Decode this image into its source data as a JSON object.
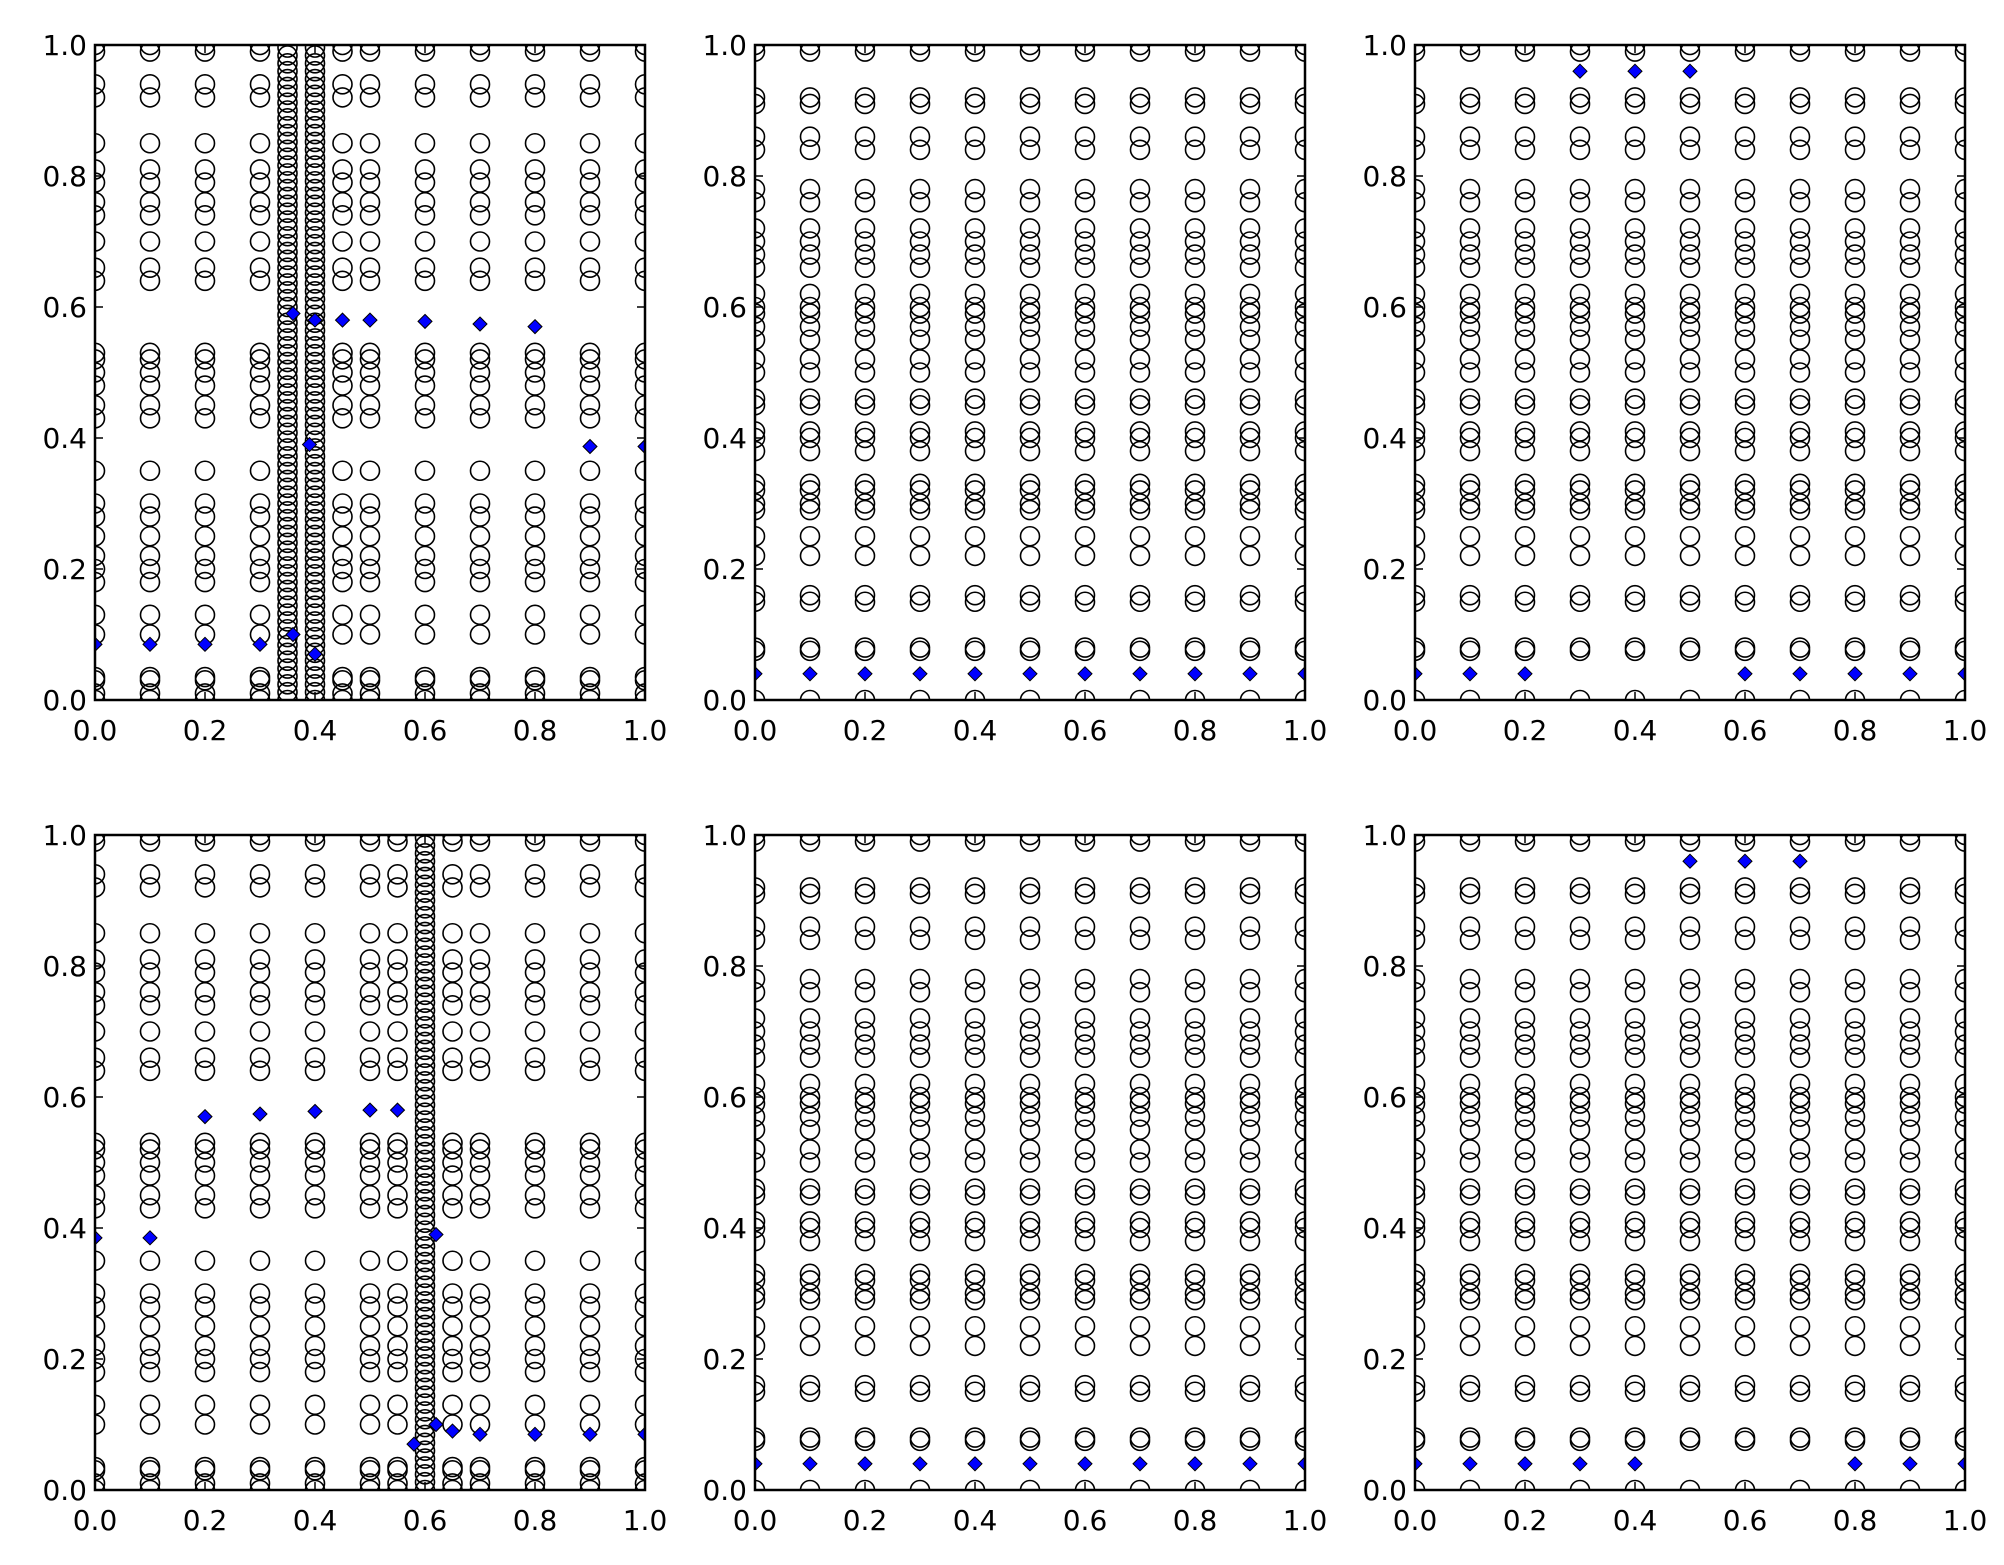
{
  "colors": {
    "marker_face": "#0000ff",
    "marker_edge": "#000000",
    "circle_edge": "#000000",
    "axes": "#000000",
    "background": "#ffffff"
  },
  "chart_data": [
    {
      "type": "scatter",
      "panel": "top-left",
      "xlim": [
        0,
        1
      ],
      "ylim": [
        0,
        1
      ],
      "xticks": [
        "0.0",
        "0.2",
        "0.4",
        "0.6",
        "0.8",
        "1.0"
      ],
      "yticks": [
        "0.0",
        "0.2",
        "0.4",
        "0.6",
        "0.8",
        "1.0"
      ],
      "grid": false,
      "circle_x": [
        0,
        0.1,
        0.2,
        0.3,
        0.35,
        0.4,
        0.45,
        0.5,
        0.6,
        0.7,
        0.8,
        0.9,
        1.0
      ],
      "circle_dense_columns": [
        0.35,
        0.4
      ],
      "circle_y": [
        0,
        0.01,
        0.03,
        0.035,
        0.1,
        0.13,
        0.18,
        0.2,
        0.22,
        0.25,
        0.28,
        0.3,
        0.35,
        0.43,
        0.45,
        0.48,
        0.5,
        0.52,
        0.53,
        0.64,
        0.66,
        0.7,
        0.74,
        0.76,
        0.79,
        0.81,
        0.85,
        0.92,
        0.94,
        0.99,
        1.0
      ],
      "diamonds": [
        [
          0,
          0.085
        ],
        [
          0.1,
          0.085
        ],
        [
          0.2,
          0.085
        ],
        [
          0.3,
          0.085
        ],
        [
          0.36,
          0.1
        ],
        [
          0.4,
          0.07
        ],
        [
          0.36,
          0.59
        ],
        [
          0.4,
          0.58
        ],
        [
          0.45,
          0.58
        ],
        [
          0.5,
          0.58
        ],
        [
          0.6,
          0.578
        ],
        [
          0.7,
          0.574
        ],
        [
          0.8,
          0.57
        ],
        [
          0.9,
          0.387
        ],
        [
          1.0,
          0.387
        ],
        [
          0.39,
          0.39
        ]
      ]
    },
    {
      "type": "scatter",
      "panel": "top-middle",
      "xlim": [
        0,
        1
      ],
      "ylim": [
        0,
        1
      ],
      "xticks": [
        "0.0",
        "0.2",
        "0.4",
        "0.6",
        "0.8",
        "1.0"
      ],
      "yticks": [
        "0.0",
        "0.2",
        "0.4",
        "0.6",
        "0.8",
        "1.0"
      ],
      "grid": false,
      "circle_x": [
        0,
        0.1,
        0.2,
        0.3,
        0.4,
        0.5,
        0.6,
        0.7,
        0.8,
        0.9,
        1.0
      ],
      "circle_dense_columns": [],
      "circle_y": [
        0,
        0.075,
        0.08,
        0.15,
        0.16,
        0.22,
        0.25,
        0.29,
        0.3,
        0.32,
        0.33,
        0.38,
        0.4,
        0.41,
        0.45,
        0.46,
        0.5,
        0.52,
        0.55,
        0.57,
        0.59,
        0.6,
        0.62,
        0.66,
        0.68,
        0.7,
        0.72,
        0.76,
        0.78,
        0.84,
        0.86,
        0.91,
        0.92,
        0.99,
        1.0
      ],
      "diamonds": [
        [
          0,
          0.04
        ],
        [
          0.1,
          0.04
        ],
        [
          0.2,
          0.04
        ],
        [
          0.3,
          0.04
        ],
        [
          0.4,
          0.04
        ],
        [
          0.5,
          0.04
        ],
        [
          0.6,
          0.04
        ],
        [
          0.7,
          0.04
        ],
        [
          0.8,
          0.04
        ],
        [
          0.9,
          0.04
        ],
        [
          1.0,
          0.04
        ]
      ]
    },
    {
      "type": "scatter",
      "panel": "top-right",
      "xlim": [
        0,
        1
      ],
      "ylim": [
        0,
        1
      ],
      "xticks": [
        "0.0",
        "0.2",
        "0.4",
        "0.6",
        "0.8",
        "1.0"
      ],
      "yticks": [
        "0.0",
        "0.2",
        "0.4",
        "0.6",
        "0.8",
        "1.0"
      ],
      "grid": false,
      "circle_x": [
        0,
        0.1,
        0.2,
        0.3,
        0.4,
        0.5,
        0.6,
        0.7,
        0.8,
        0.9,
        1.0
      ],
      "circle_dense_columns": [],
      "circle_y": [
        0,
        0.075,
        0.08,
        0.15,
        0.16,
        0.22,
        0.25,
        0.29,
        0.3,
        0.32,
        0.33,
        0.38,
        0.4,
        0.41,
        0.45,
        0.46,
        0.5,
        0.52,
        0.55,
        0.57,
        0.59,
        0.6,
        0.62,
        0.66,
        0.68,
        0.7,
        0.72,
        0.76,
        0.78,
        0.84,
        0.86,
        0.91,
        0.92,
        0.99,
        1.0
      ],
      "diamonds": [
        [
          0,
          0.04
        ],
        [
          0.1,
          0.04
        ],
        [
          0.2,
          0.04
        ],
        [
          0.3,
          0.96
        ],
        [
          0.4,
          0.96
        ],
        [
          0.5,
          0.96
        ],
        [
          0.6,
          0.04
        ],
        [
          0.7,
          0.04
        ],
        [
          0.8,
          0.04
        ],
        [
          0.9,
          0.04
        ],
        [
          1.0,
          0.04
        ]
      ]
    },
    {
      "type": "scatter",
      "panel": "bottom-left",
      "xlim": [
        0,
        1
      ],
      "ylim": [
        0,
        1
      ],
      "xticks": [
        "0.0",
        "0.2",
        "0.4",
        "0.6",
        "0.8",
        "1.0"
      ],
      "yticks": [
        "0.0",
        "0.2",
        "0.4",
        "0.6",
        "0.8",
        "1.0"
      ],
      "grid": false,
      "circle_x": [
        0,
        0.1,
        0.2,
        0.3,
        0.4,
        0.5,
        0.55,
        0.6,
        0.65,
        0.7,
        0.8,
        0.9,
        1.0
      ],
      "circle_dense_columns": [
        0.6,
        0.62
      ],
      "circle_y": [
        0,
        0.01,
        0.03,
        0.035,
        0.1,
        0.13,
        0.18,
        0.2,
        0.22,
        0.25,
        0.28,
        0.3,
        0.35,
        0.43,
        0.45,
        0.48,
        0.5,
        0.52,
        0.53,
        0.64,
        0.66,
        0.7,
        0.74,
        0.76,
        0.79,
        0.81,
        0.85,
        0.92,
        0.94,
        0.99,
        1.0
      ],
      "diamonds": [
        [
          0,
          0.385
        ],
        [
          0.1,
          0.385
        ],
        [
          0.2,
          0.57
        ],
        [
          0.3,
          0.574
        ],
        [
          0.4,
          0.578
        ],
        [
          0.5,
          0.58
        ],
        [
          0.55,
          0.58
        ],
        [
          0.62,
          0.39
        ],
        [
          0.58,
          0.07
        ],
        [
          0.62,
          0.1
        ],
        [
          0.65,
          0.09
        ],
        [
          0.7,
          0.085
        ],
        [
          0.8,
          0.085
        ],
        [
          0.9,
          0.085
        ],
        [
          1.0,
          0.085
        ]
      ]
    },
    {
      "type": "scatter",
      "panel": "bottom-middle",
      "xlim": [
        0,
        1
      ],
      "ylim": [
        0,
        1
      ],
      "xticks": [
        "0.0",
        "0.2",
        "0.4",
        "0.6",
        "0.8",
        "1.0"
      ],
      "yticks": [
        "0.0",
        "0.2",
        "0.4",
        "0.6",
        "0.8",
        "1.0"
      ],
      "grid": false,
      "circle_x": [
        0,
        0.1,
        0.2,
        0.3,
        0.4,
        0.5,
        0.6,
        0.7,
        0.8,
        0.9,
        1.0
      ],
      "circle_dense_columns": [],
      "circle_y": [
        0,
        0.075,
        0.08,
        0.15,
        0.16,
        0.22,
        0.25,
        0.29,
        0.3,
        0.32,
        0.33,
        0.38,
        0.4,
        0.41,
        0.45,
        0.46,
        0.5,
        0.52,
        0.55,
        0.57,
        0.59,
        0.6,
        0.62,
        0.66,
        0.68,
        0.7,
        0.72,
        0.76,
        0.78,
        0.84,
        0.86,
        0.91,
        0.92,
        0.99,
        1.0
      ],
      "diamonds": [
        [
          0,
          0.04
        ],
        [
          0.1,
          0.04
        ],
        [
          0.2,
          0.04
        ],
        [
          0.3,
          0.04
        ],
        [
          0.4,
          0.04
        ],
        [
          0.5,
          0.04
        ],
        [
          0.6,
          0.04
        ],
        [
          0.7,
          0.04
        ],
        [
          0.8,
          0.04
        ],
        [
          0.9,
          0.04
        ],
        [
          1.0,
          0.04
        ]
      ]
    },
    {
      "type": "scatter",
      "panel": "bottom-right",
      "xlim": [
        0,
        1
      ],
      "ylim": [
        0,
        1
      ],
      "xticks": [
        "0.0",
        "0.2",
        "0.4",
        "0.6",
        "0.8",
        "1.0"
      ],
      "yticks": [
        "0.0",
        "0.2",
        "0.4",
        "0.6",
        "0.8",
        "1.0"
      ],
      "grid": false,
      "circle_x": [
        0,
        0.1,
        0.2,
        0.3,
        0.4,
        0.5,
        0.6,
        0.7,
        0.8,
        0.9,
        1.0
      ],
      "circle_dense_columns": [],
      "circle_y": [
        0,
        0.075,
        0.08,
        0.15,
        0.16,
        0.22,
        0.25,
        0.29,
        0.3,
        0.32,
        0.33,
        0.38,
        0.4,
        0.41,
        0.45,
        0.46,
        0.5,
        0.52,
        0.55,
        0.57,
        0.59,
        0.6,
        0.62,
        0.66,
        0.68,
        0.7,
        0.72,
        0.76,
        0.78,
        0.84,
        0.86,
        0.91,
        0.92,
        0.99,
        1.0
      ],
      "diamonds": [
        [
          0,
          0.04
        ],
        [
          0.1,
          0.04
        ],
        [
          0.2,
          0.04
        ],
        [
          0.3,
          0.04
        ],
        [
          0.4,
          0.04
        ],
        [
          0.5,
          0.96
        ],
        [
          0.6,
          0.96
        ],
        [
          0.7,
          0.96
        ],
        [
          0.8,
          0.04
        ],
        [
          0.9,
          0.04
        ],
        [
          1.0,
          0.04
        ]
      ]
    }
  ]
}
